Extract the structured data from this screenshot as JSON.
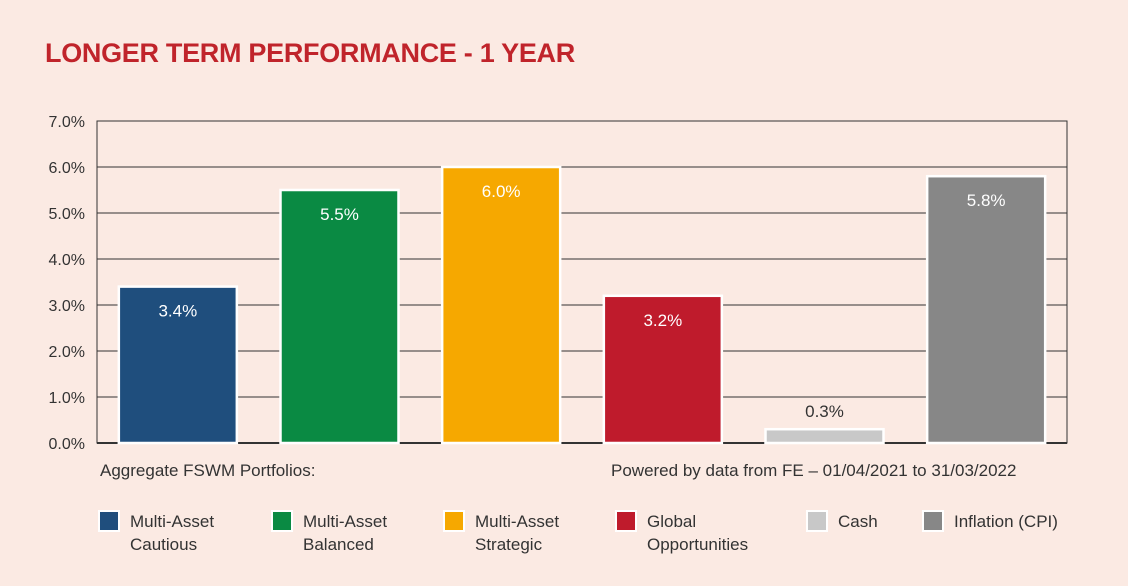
{
  "chart_data": {
    "type": "bar",
    "title": "LONGER TERM PERFORMANCE - 1 YEAR",
    "categories": [
      "Multi-Asset Cautious",
      "Multi-Asset Balanced",
      "Multi-Asset Strategic",
      "Global Opportunities",
      "Cash",
      "Inflation (CPI)"
    ],
    "values": [
      3.4,
      5.5,
      6.0,
      3.2,
      0.3,
      5.8
    ],
    "data_labels": [
      "3.4%",
      "5.5%",
      "6.0%",
      "3.2%",
      "0.3%",
      "5.8%"
    ],
    "colors": [
      "#1f4e7d",
      "#0a8a43",
      "#f6a800",
      "#bf1b2c",
      "#c8c8c8",
      "#878787"
    ],
    "ylim": [
      0,
      7
    ],
    "yticks": [
      0,
      1,
      2,
      3,
      4,
      5,
      6,
      7
    ],
    "ytick_labels": [
      "0.0%",
      "1.0%",
      "2.0%",
      "3.0%",
      "4.0%",
      "5.0%",
      "6.0%",
      "7.0%"
    ],
    "grid": true,
    "legend_position": "bottom"
  },
  "notes": {
    "left": "Aggregate FSWM Portfolios:",
    "right": "Powered by data from FE – 01/04/2021 to 31/03/2022"
  },
  "legend": [
    {
      "label": "Multi-Asset\nCautious",
      "color": "#1f4e7d"
    },
    {
      "label": "Multi-Asset\nBalanced",
      "color": "#0a8a43"
    },
    {
      "label": "Multi-Asset\nStrategic",
      "color": "#f6a800"
    },
    {
      "label": "Global\nOpportunities",
      "color": "#bf1b2c"
    },
    {
      "label": "Cash",
      "color": "#c8c8c8"
    },
    {
      "label": "Inflation (CPI)",
      "color": "#878787"
    }
  ]
}
